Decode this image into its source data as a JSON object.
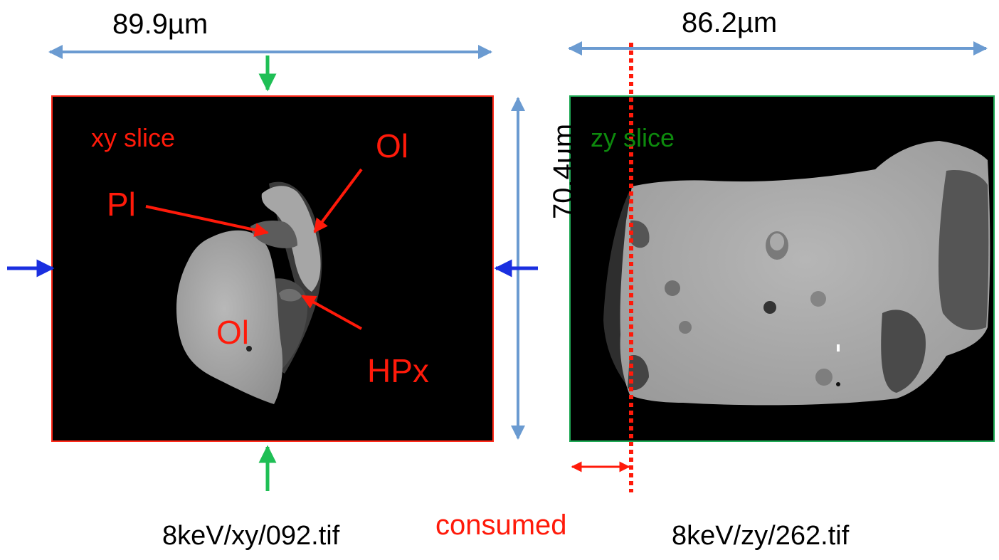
{
  "dimensions": {
    "xy_width": "89.9µm",
    "zy_width": "86.2µm",
    "height": "70.4µm"
  },
  "xy_panel": {
    "title": "xy slice",
    "labels": {
      "pl": "Pl",
      "ol_top": "Ol",
      "ol_bottom": "Ol",
      "hpx": "HPx"
    },
    "caption": "8keV/xy/092.tif"
  },
  "zy_panel": {
    "title": "zy slice",
    "caption": "8keV/zy/262.tif"
  },
  "consumed_label": "consumed",
  "colors": {
    "dimension_arrow": "#6b9bd1",
    "annotation_red": "#ff1a0a",
    "xy_frame": "#ff2a1a",
    "zy_frame": "#1faa55",
    "green_arrow": "#1fbf55",
    "blue_arrow": "#1a2fe0"
  }
}
